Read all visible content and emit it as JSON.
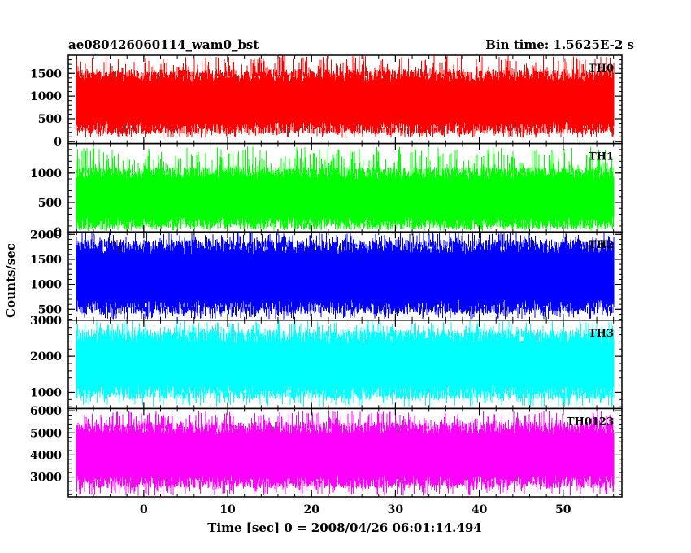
{
  "chart_data": {
    "type": "line",
    "title_left": "ae080426060114_wam0_bst",
    "title_right": "Bin time: 1.5625E-2 s",
    "xlabel": "Time [sec] 0 = 2008/04/26 06:01:14.494",
    "ylabel": "Counts/sec",
    "x_range": [
      -9,
      57
    ],
    "x_ticks": [
      0,
      10,
      20,
      30,
      40,
      50
    ],
    "data_x_range": [
      -8,
      56
    ],
    "panels": [
      {
        "name": "TH0",
        "color": "#ff0000",
        "ylim": [
          -50,
          1900
        ],
        "y_ticks": [
          0,
          500,
          1000,
          1500
        ],
        "band_low": 300,
        "band_high": 1450,
        "spike_min": 80,
        "spike_max": 1900
      },
      {
        "name": "TH1",
        "color": "#00ff00",
        "ylim": [
          0,
          1500
        ],
        "y_ticks": [
          0,
          500,
          1000
        ],
        "band_low": 150,
        "band_high": 1000,
        "spike_min": 20,
        "spike_max": 1450
      },
      {
        "name": "TH2",
        "color": "#0000ff",
        "ylim": [
          280,
          2050
        ],
        "y_ticks": [
          500,
          1000,
          1500,
          2000
        ],
        "band_low": 550,
        "band_high": 1750,
        "spike_min": 300,
        "spike_max": 2050
      },
      {
        "name": "TH3",
        "color": "#00ffff",
        "ylim": [
          550,
          3000
        ],
        "y_ticks": [
          1000,
          2000,
          3000
        ],
        "band_low": 1000,
        "band_high": 2550,
        "spike_min": 600,
        "spike_max": 2980
      },
      {
        "name": "TH0123",
        "color": "#ff00ff",
        "ylim": [
          2100,
          6100
        ],
        "y_ticks": [
          3000,
          4000,
          5000,
          6000
        ],
        "band_low": 2800,
        "band_high": 5200,
        "spike_min": 2150,
        "spike_max": 6000
      }
    ]
  }
}
